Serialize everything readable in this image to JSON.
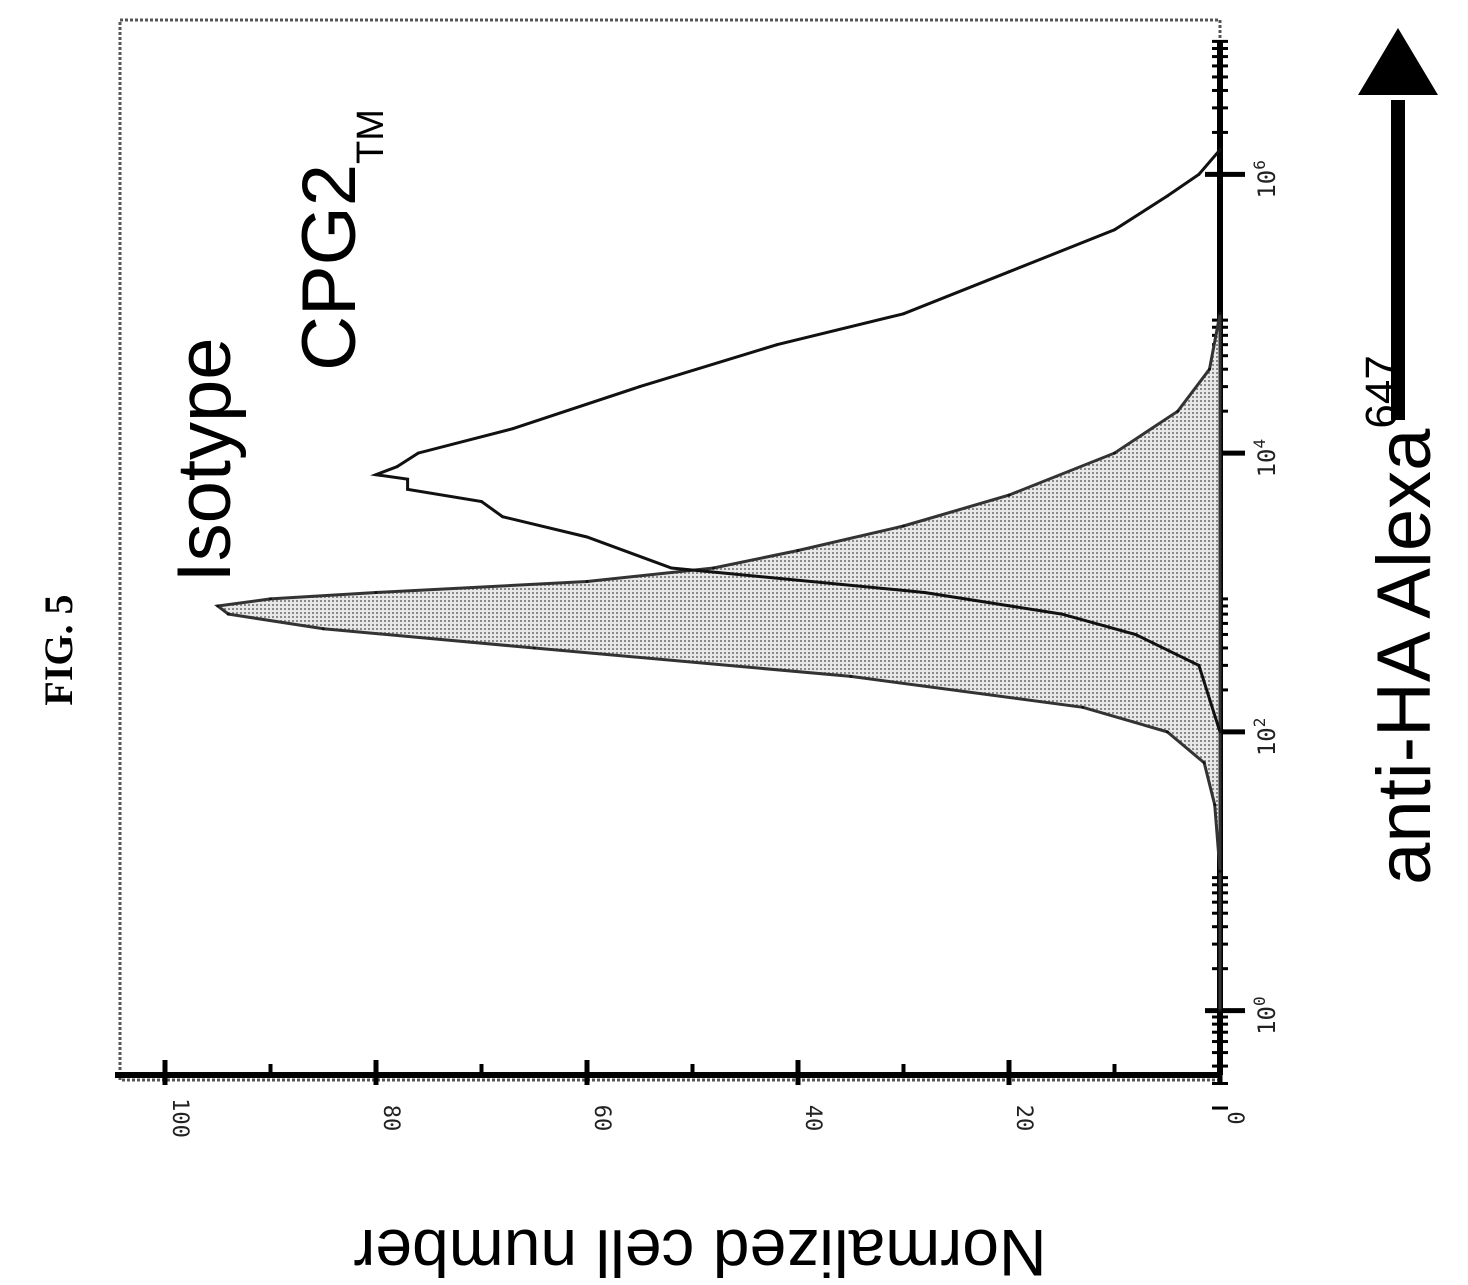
{
  "figure_label": "FIG. 5",
  "chart_data": {
    "type": "area",
    "title": "",
    "xlabel": "anti-HA Alexa",
    "xlabel_superscript": "647",
    "ylabel": "Normalized cell number",
    "x_scale": "log",
    "xlim": [
      0.1,
      10000000
    ],
    "ylim": [
      0,
      100
    ],
    "y_ticks": [
      0,
      20,
      40,
      60,
      80,
      100
    ],
    "y_tick_labels": [
      "0",
      "20",
      "40",
      "60",
      "80",
      "100"
    ],
    "x_ticks": [
      1,
      100,
      10000,
      1000000
    ],
    "x_tick_base": "10",
    "x_tick_exponents": [
      "0",
      "2",
      "4",
      "6"
    ],
    "grid": false,
    "orientation": "rotated-90-clockwise",
    "series": [
      {
        "name": "Isotype",
        "style": "filled",
        "x": [
          1,
          10,
          30,
          60,
          100,
          150,
          250,
          400,
          550,
          700,
          800,
          900,
          1000,
          1200,
          1500,
          2000,
          3000,
          5000,
          10000,
          20000,
          40000,
          100000
        ],
        "y": [
          0,
          0,
          0.5,
          1.5,
          5,
          13,
          35,
          65,
          85,
          94,
          95,
          90,
          80,
          60,
          48,
          40,
          30,
          20,
          10,
          4,
          1,
          0
        ]
      },
      {
        "name": "CPG2",
        "name_subscript": "TM",
        "style": "line",
        "x": [
          100,
          300,
          500,
          700,
          1000,
          1500,
          2500,
          3500,
          4500,
          5500,
          6500,
          7000,
          8000,
          10000,
          15000,
          30000,
          60000,
          100000,
          200000,
          400000,
          700000,
          1000000,
          1500000
        ],
        "y": [
          0,
          2,
          8,
          15,
          28,
          52,
          60,
          68,
          70,
          77,
          77,
          80,
          78,
          76,
          67,
          55,
          42,
          30,
          20,
          10,
          5,
          2,
          0
        ]
      }
    ]
  }
}
